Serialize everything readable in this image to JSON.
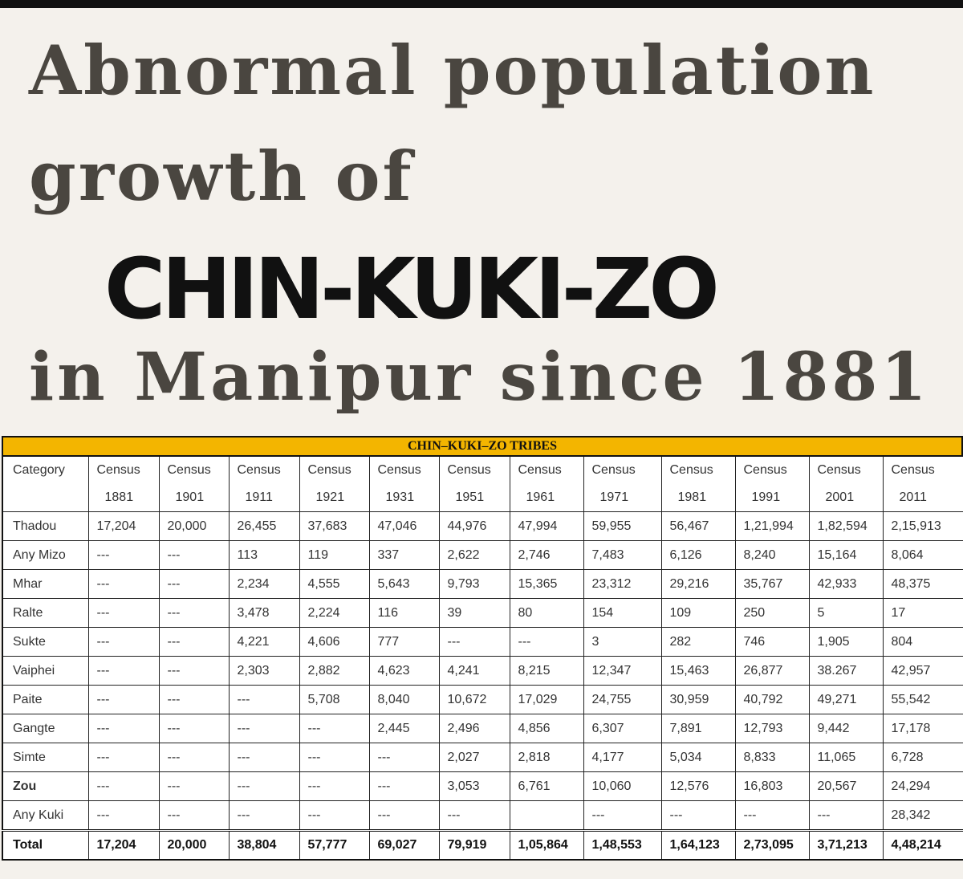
{
  "headline": {
    "line1": "Abnormal population",
    "line2": "growth of",
    "line3": "CHIN-KUKI-ZO",
    "line4": "in Manipur since 1881"
  },
  "table": {
    "banner": "CHIN–KUKI–ZO TRIBES",
    "headers": [
      {
        "top": "Category",
        "bottom": ""
      },
      {
        "top": "Census",
        "bottom": "1881"
      },
      {
        "top": "Census",
        "bottom": "1901"
      },
      {
        "top": "Census",
        "bottom": "1911"
      },
      {
        "top": "Census",
        "bottom": "1921"
      },
      {
        "top": "Census",
        "bottom": "1931"
      },
      {
        "top": "Census",
        "bottom": "1951"
      },
      {
        "top": "Census",
        "bottom": "1961"
      },
      {
        "top": "Census",
        "bottom": "1971"
      },
      {
        "top": "Census",
        "bottom": "1981"
      },
      {
        "top": "Census",
        "bottom": "1991"
      },
      {
        "top": "Census",
        "bottom": "2001"
      },
      {
        "top": "Census",
        "bottom": "2011"
      }
    ],
    "rows": [
      [
        "Thadou",
        "17,204",
        "20,000",
        "26,455",
        "37,683",
        "47,046",
        "44,976",
        "47,994",
        "59,955",
        "56,467",
        "1,21,994",
        "1,82,594",
        "2,15,913"
      ],
      [
        "Any Mizo",
        "---",
        "---",
        "113",
        "119",
        "337",
        "2,622",
        "2,746",
        "7,483",
        "6,126",
        "8,240",
        "15,164",
        "8,064"
      ],
      [
        "Mhar",
        "---",
        "---",
        "2,234",
        "4,555",
        "5,643",
        "9,793",
        "15,365",
        "23,312",
        "29,216",
        "35,767",
        "42,933",
        "48,375"
      ],
      [
        "Ralte",
        "---",
        "---",
        "3,478",
        "2,224",
        "116",
        "39",
        "80",
        "154",
        "109",
        "250",
        "5",
        "17"
      ],
      [
        "Sukte",
        "---",
        "---",
        "4,221",
        "4,606",
        "777",
        "---",
        "---",
        "3",
        "282",
        "746",
        "1,905",
        "804"
      ],
      [
        "Vaiphei",
        "---",
        "---",
        "2,303",
        "2,882",
        "4,623",
        "4,241",
        "8,215",
        "12,347",
        "15,463",
        "26,877",
        "38.267",
        "42,957"
      ],
      [
        "Paite",
        "---",
        "---",
        "---",
        "5,708",
        "8,040",
        "10,672",
        "17,029",
        "24,755",
        "30,959",
        "40,792",
        "49,271",
        "55,542"
      ],
      [
        "Gangte",
        "---",
        "---",
        "---",
        "---",
        "2,445",
        "2,496",
        "4,856",
        "6,307",
        "7,891",
        "12,793",
        "9,442",
        "17,178"
      ],
      [
        "Simte",
        "---",
        "---",
        "---",
        "---",
        "---",
        "2,027",
        "2,818",
        "4,177",
        "5,034",
        "8,833",
        "11,065",
        "6,728"
      ],
      [
        "Zou",
        "---",
        "---",
        "---",
        "---",
        "---",
        "3,053",
        "6,761",
        "10,060",
        "12,576",
        "16,803",
        "20,567",
        "24,294"
      ],
      [
        "Any Kuki",
        "---",
        "---",
        "---",
        "---",
        "---",
        "---",
        "",
        "---",
        "---",
        "---",
        "---",
        "28,342"
      ]
    ],
    "total": [
      "Total",
      "17,204",
      "20,000",
      "38,804",
      "57,777",
      "69,027",
      "79,919",
      "1,05,864",
      "1,48,553",
      "1,64,123",
      "2,73,095",
      "3,71,213",
      "4,48,214"
    ]
  }
}
